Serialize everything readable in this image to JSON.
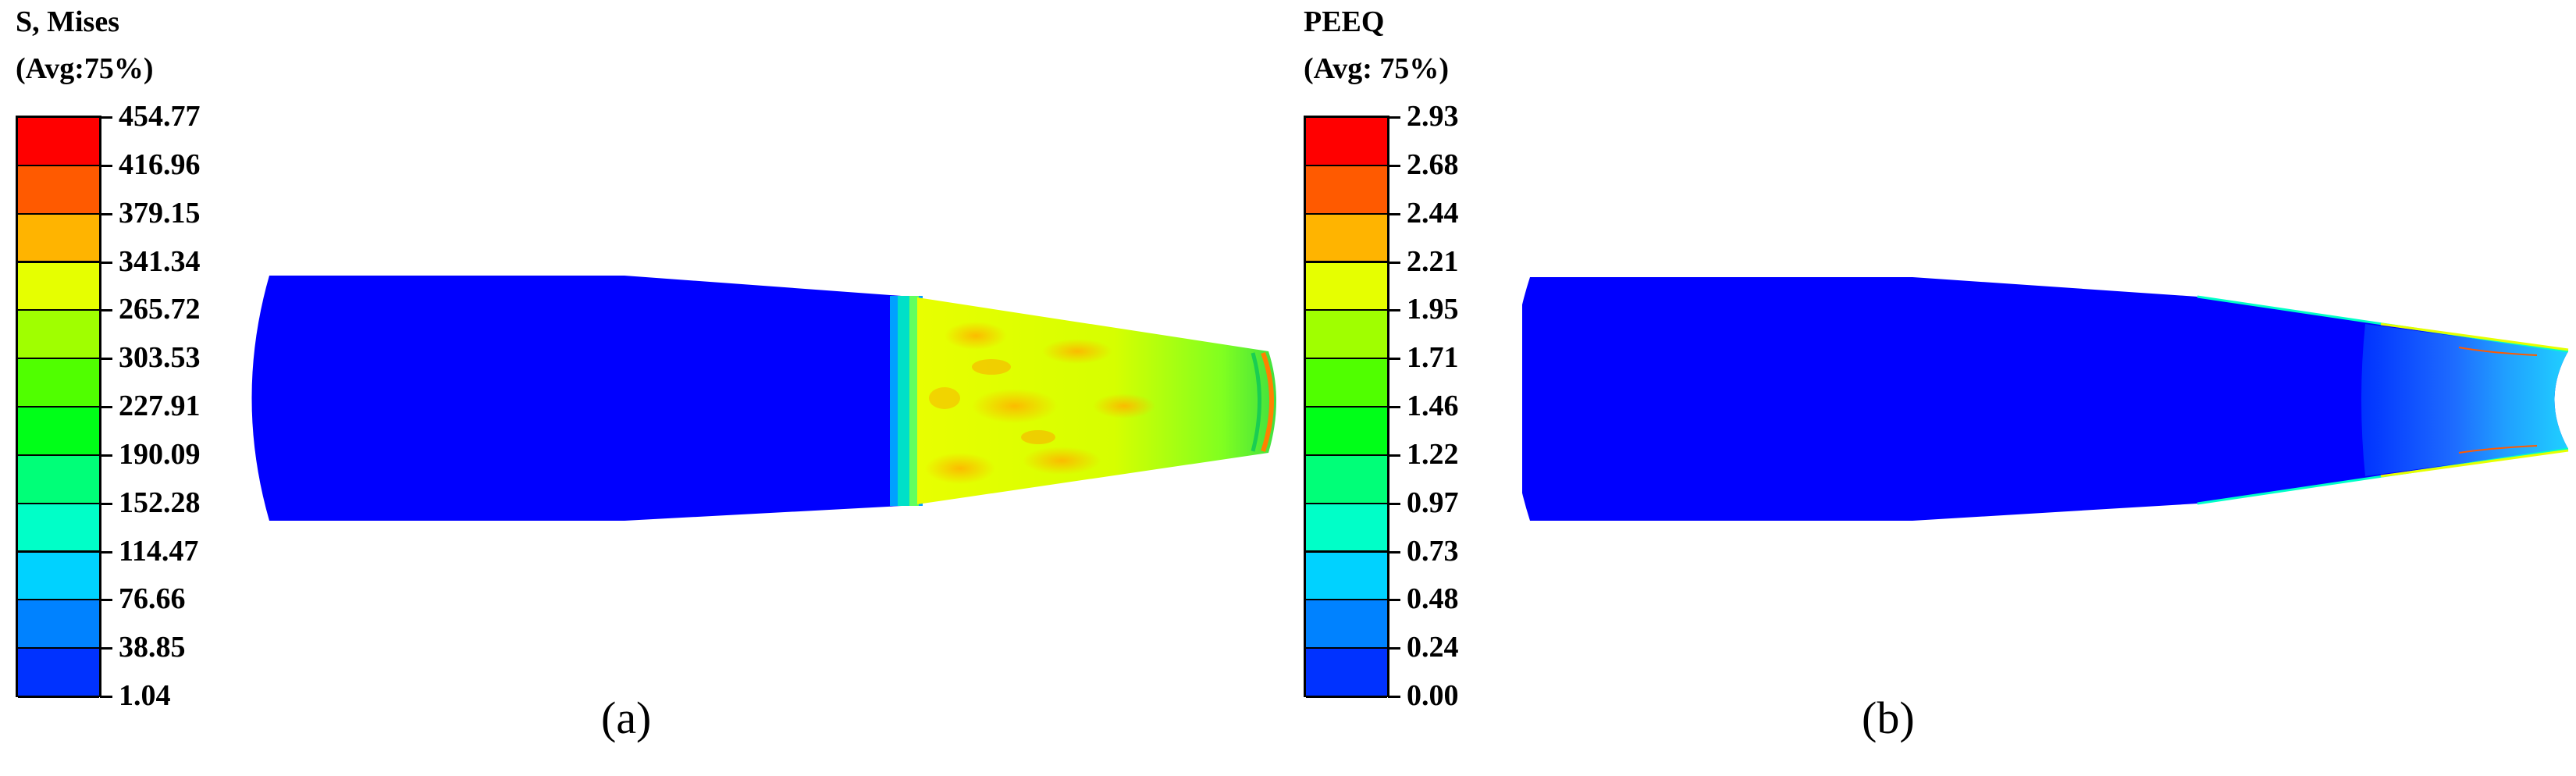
{
  "panels": [
    {
      "id": "a",
      "legend": {
        "title_line1": "S, Mises",
        "title_line2": "(Avg:75%)",
        "values": [
          "454.77",
          "416.96",
          "379.15",
          "341.34",
          "265.72",
          "303.53",
          "227.91",
          "190.09",
          "152.28",
          "114.47",
          "76.66",
          "38.85",
          "1.04"
        ]
      },
      "caption": "(a)"
    },
    {
      "id": "b",
      "legend": {
        "title_line1": "PEEQ",
        "title_line2": "(Avg: 75%)",
        "values": [
          "2.93",
          "2.68",
          "2.44",
          "2.21",
          "1.95",
          "1.71",
          "1.46",
          "1.22",
          "0.97",
          "0.73",
          "0.48",
          "0.24",
          "0.00"
        ]
      },
      "caption": "(b)"
    }
  ],
  "colors": {
    "contour_scale": [
      "#ff0000",
      "#ff5a00",
      "#ffb400",
      "#e6ff00",
      "#a0ff00",
      "#50ff00",
      "#00ff18",
      "#00ff78",
      "#00ffc8",
      "#00d2ff",
      "#0082ff",
      "#0032ff"
    ],
    "part_base": "#0000ff"
  }
}
